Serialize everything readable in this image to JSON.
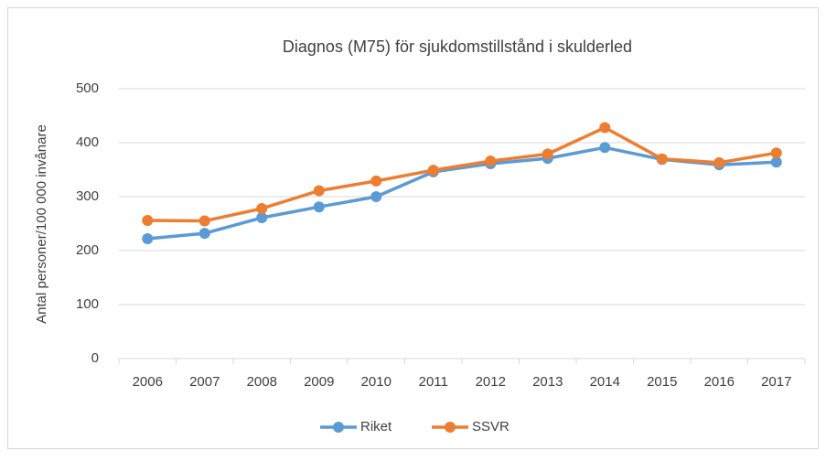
{
  "chart_data": {
    "type": "line",
    "title": "Diagnos (M75) för sjukdomstillstånd i skulderled",
    "y_label": "Antal personer/100 000 invånare",
    "categories": [
      "2006",
      "2007",
      "2008",
      "2009",
      "2010",
      "2011",
      "2012",
      "2013",
      "2014",
      "2015",
      "2016",
      "2017"
    ],
    "series": [
      {
        "name": "Riket",
        "color": "#5b9bd5",
        "values": [
          222,
          232,
          261,
          281,
          300,
          346,
          361,
          371,
          391,
          369,
          359,
          364
        ]
      },
      {
        "name": "SSVR",
        "color": "#ed7d31",
        "values": [
          256,
          255,
          278,
          311,
          329,
          349,
          366,
          379,
          428,
          370,
          363,
          381
        ]
      }
    ],
    "ylim": [
      0,
      500
    ],
    "yticks": [
      0,
      100,
      200,
      300,
      400,
      500
    ],
    "grid": true,
    "legend": "bottom"
  }
}
